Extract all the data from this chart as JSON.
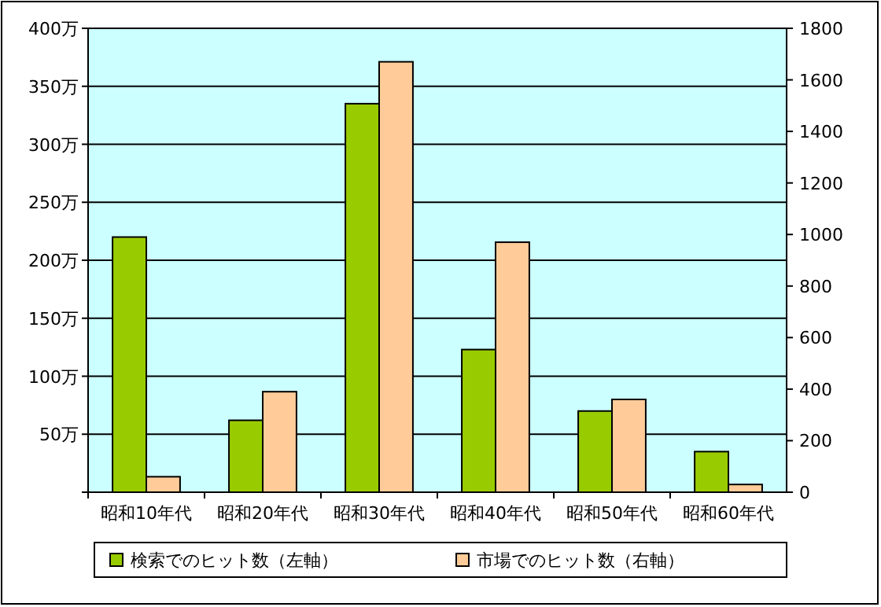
{
  "chart_data": {
    "type": "bar",
    "categories": [
      "昭和10年代",
      "昭和20年代",
      "昭和30年代",
      "昭和40年代",
      "昭和50年代",
      "昭和60年代"
    ],
    "series": [
      {
        "name": "検索でのヒット数（左軸）",
        "color": "#99cc00",
        "values": [
          220,
          62,
          335,
          123,
          70,
          35
        ]
      },
      {
        "name": "市場でのヒット数（右軸）",
        "color": "#ffcc99",
        "axis": "y2",
        "values": [
          60,
          390,
          1670,
          970,
          360,
          30
        ]
      }
    ],
    "ylim": [
      0,
      400
    ],
    "yticks": [
      {
        "value": 0,
        "label": null
      },
      {
        "value": 50,
        "label": "50万"
      },
      {
        "value": 100,
        "label": "100万"
      },
      {
        "value": 150,
        "label": "150万"
      },
      {
        "value": 200,
        "label": "200万"
      },
      {
        "value": 250,
        "label": "250万"
      },
      {
        "value": 300,
        "label": "300万"
      },
      {
        "value": 350,
        "label": "350万"
      },
      {
        "value": 400,
        "label": "400万"
      }
    ],
    "y2lim": [
      0,
      1800
    ],
    "y2ticks": [
      0,
      200,
      400,
      600,
      800,
      1000,
      1200,
      1400,
      1600,
      1800
    ],
    "grid": "y",
    "legend": "bottom"
  }
}
